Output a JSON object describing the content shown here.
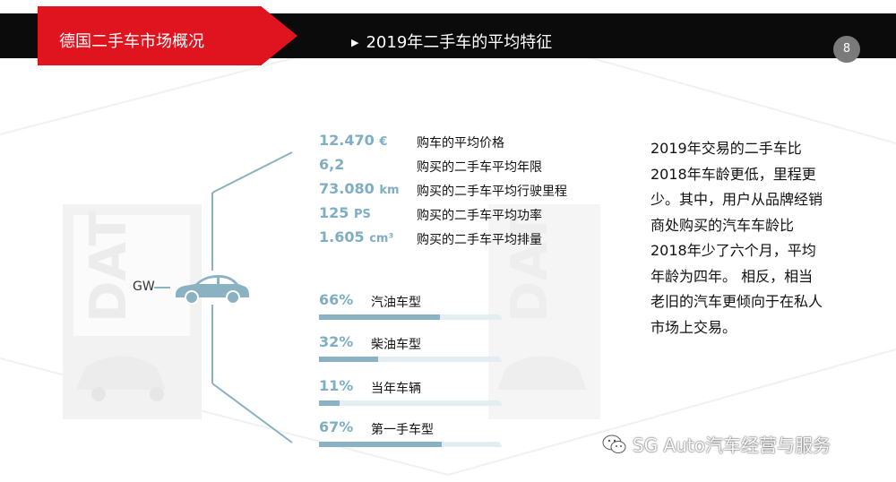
{
  "header": {
    "section": "德国二手车市场概况",
    "title": "2019年二手车的平均特征",
    "page_number": "8"
  },
  "colors": {
    "accent_red": "#e0141f",
    "bar_black": "#0b0b0b",
    "data_blue": "#7faec2"
  },
  "car_label": "GW",
  "stats": [
    {
      "value": "12.470",
      "unit": "€",
      "label": "购车的平均价格"
    },
    {
      "value": "6,2",
      "unit": "",
      "label": "购买的二手车平均年限"
    },
    {
      "value": "73.080",
      "unit": "km",
      "label": "购买的二手车平均行驶里程"
    },
    {
      "value": "125",
      "unit": "PS",
      "label": "购买的二手车平均功率"
    },
    {
      "value": "1.605",
      "unit": "cm³",
      "label": "购买的二手车平均排量"
    }
  ],
  "shares": [
    {
      "percent": "66%",
      "fraction": 0.66,
      "label": "汽油车型"
    },
    {
      "percent": "32%",
      "fraction": 0.32,
      "label": "柴油车型"
    },
    {
      "percent": "11%",
      "fraction": 0.11,
      "label": "当年车辆"
    },
    {
      "percent": "67%",
      "fraction": 0.67,
      "label": "第一手车型"
    }
  ],
  "summary_lines": [
    "2019年交易的二手车比",
    "2018年车龄更低，里程更",
    "少。其中，用户从品牌经销",
    "商处购买的汽车车龄比",
    "2018年少了六个月，平均",
    "年龄为四年。 相反，相当",
    "老旧的汽车更倾向于在私人",
    "市场上交易。"
  ],
  "watermark": "SG Auto汽车经营与服务",
  "logo_text": "DAT",
  "icons": [
    "car-icon",
    "wechat-icon"
  ]
}
